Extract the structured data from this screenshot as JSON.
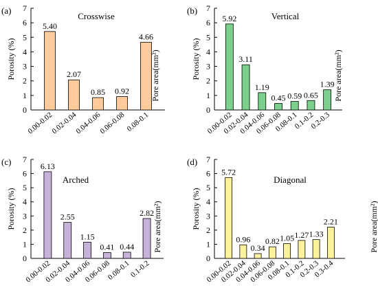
{
  "figure": {
    "ylabel": "Porosity (%)",
    "xlabel": "Pore area(mm²)"
  },
  "chart_data": [
    {
      "type": "bar",
      "panel_label": "(a)",
      "title": "Crosswise",
      "categories": [
        "0.00-0.02",
        "0.02-0.04",
        "0.04-0.06",
        "0.06-0.08",
        "0.08-0.1"
      ],
      "values": [
        5.4,
        2.07,
        0.85,
        0.92,
        4.66
      ],
      "value_labels": [
        "5.40",
        "2.07",
        "0.85",
        "0.92",
        "4.66"
      ],
      "ylabel": "Porosity (%)",
      "xlabel": "Pore area(mm²)",
      "ylim": [
        0,
        7
      ],
      "yticks": [
        "0",
        "1",
        "2",
        "3",
        "4",
        "5",
        "6",
        "7"
      ],
      "bar_color": "#FDCB9B",
      "grid": false
    },
    {
      "type": "bar",
      "panel_label": "(b)",
      "title": "Vertical",
      "categories": [
        "0.00-0.02",
        "0.02-0.04",
        "0.04-0.06",
        "0.06-0.08",
        "0.08-0.1",
        "0.1-0.2",
        "0.2-0.3"
      ],
      "values": [
        5.92,
        3.11,
        1.19,
        0.45,
        0.59,
        0.65,
        1.39
      ],
      "value_labels": [
        "5.92",
        "3.11",
        "1.19",
        "0.45",
        "0.59",
        "0.65",
        "1.39"
      ],
      "ylabel": "Porosity (%)",
      "xlabel": "Pore area(mm²)",
      "ylim": [
        0,
        7
      ],
      "yticks": [
        "0",
        "1",
        "2",
        "3",
        "4",
        "5",
        "6",
        "7"
      ],
      "bar_color": "#7DCF8E",
      "grid": false
    },
    {
      "type": "bar",
      "panel_label": "(c)",
      "title": "Arched",
      "categories": [
        "0.00-0.02",
        "0.02-0.04",
        "0.04-0.06",
        "0.06-0.08",
        "0.08-0.1",
        "0.1-0.2"
      ],
      "values": [
        6.13,
        2.55,
        1.15,
        0.41,
        0.44,
        2.82
      ],
      "value_labels": [
        "6.13",
        "2.55",
        "1.15",
        "0.41",
        "0.44",
        "2.82"
      ],
      "ylabel": "Porosity (%)",
      "xlabel": "Pore area(mm²)",
      "ylim": [
        0,
        7
      ],
      "yticks": [
        "0",
        "1",
        "2",
        "3",
        "4",
        "5",
        "6",
        "7"
      ],
      "bar_color": "#C7B2DA",
      "grid": false
    },
    {
      "type": "bar",
      "panel_label": "(d)",
      "title": "Diagonal",
      "categories": [
        "0.00-0.02",
        "0.02-0.04",
        "0.04-0.06",
        "0.06-0.08",
        "0.08-0.1",
        "0.1-0.2",
        "0.2-0.3",
        "0.3-0.4"
      ],
      "values": [
        5.72,
        0.96,
        0.34,
        0.82,
        1.05,
        1.27,
        1.33,
        2.21
      ],
      "value_labels": [
        "5.72",
        "0.96",
        "0.34",
        "0.82",
        "1.05",
        "1.27",
        "1.33",
        "2.21"
      ],
      "ylabel": "Porosity (%)",
      "xlabel": "Pore area(mm²)",
      "ylim": [
        0,
        7
      ],
      "yticks": [
        "0",
        "1",
        "2",
        "3",
        "4",
        "5",
        "6",
        "7"
      ],
      "bar_color": "#FCF29E",
      "grid": false
    }
  ]
}
